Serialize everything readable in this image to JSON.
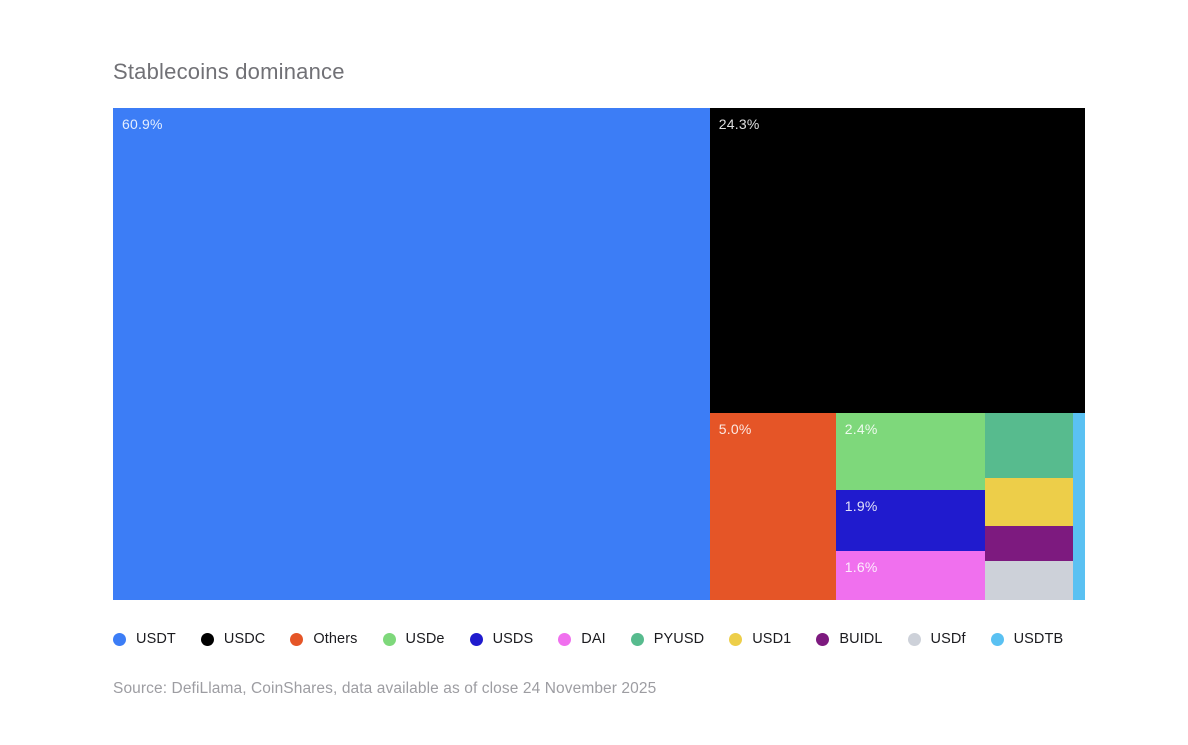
{
  "page": {
    "title": "Stablecoins dominance",
    "source": "Source: DefiLlama, CoinShares, data available as of close 24 November 2025"
  },
  "colors": {
    "background": "#ffffff",
    "title_text": "#717176",
    "source_text": "#9d9da2",
    "tile_label_text": "rgba(255,255,255,0.87)",
    "legend_text": "#1b1b1f"
  },
  "chart_data": {
    "type": "treemap",
    "title": "Stablecoins dominance",
    "unit": "%",
    "legend_position": "bottom",
    "items": [
      {
        "name": "USDT",
        "value": 60.9,
        "label": "60.9%",
        "estimated": false,
        "color": "#3C7DF6",
        "rect": {
          "x": 0,
          "y": 0,
          "w": 61.4,
          "h": 100
        }
      },
      {
        "name": "USDC",
        "value": 24.3,
        "label": "24.3%",
        "estimated": false,
        "color": "#000000",
        "rect": {
          "x": 61.4,
          "y": 0,
          "w": 38.6,
          "h": 62
        }
      },
      {
        "name": "Others",
        "value": 5.0,
        "label": "5.0%",
        "estimated": false,
        "color": "#E55527",
        "rect": {
          "x": 61.4,
          "y": 62,
          "w": 12.96,
          "h": 38
        }
      },
      {
        "name": "USDe",
        "value": 2.4,
        "label": "2.4%",
        "estimated": false,
        "color": "#7ED87B",
        "rect": {
          "x": 74.36,
          "y": 62,
          "w": 15.33,
          "h": 15.65
        }
      },
      {
        "name": "USDS",
        "value": 1.9,
        "label": "1.9%",
        "estimated": false,
        "color": "#201BCE",
        "rect": {
          "x": 74.36,
          "y": 77.65,
          "w": 15.33,
          "h": 12.4
        }
      },
      {
        "name": "DAI",
        "value": 1.6,
        "label": "1.6%",
        "estimated": false,
        "color": "#F070EE",
        "rect": {
          "x": 74.36,
          "y": 90.05,
          "w": 15.33,
          "h": 9.95
        }
      },
      {
        "name": "PYUSD",
        "value": 1.2,
        "label": "",
        "estimated": true,
        "color": "#57BB8E",
        "rect": {
          "x": 89.69,
          "y": 62,
          "w": 9.05,
          "h": 13.2
        }
      },
      {
        "name": "USD1",
        "value": 0.9,
        "label": "",
        "estimated": true,
        "color": "#EDCE49",
        "rect": {
          "x": 89.69,
          "y": 75.2,
          "w": 9.05,
          "h": 9.76
        }
      },
      {
        "name": "BUIDL",
        "value": 0.7,
        "label": "",
        "estimated": true,
        "color": "#7D1A7F",
        "rect": {
          "x": 89.69,
          "y": 84.96,
          "w": 9.05,
          "h": 7.1
        }
      },
      {
        "name": "USDf",
        "value": 0.7,
        "label": "",
        "estimated": true,
        "color": "#CDD1D9",
        "rect": {
          "x": 89.69,
          "y": 92.06,
          "w": 9.05,
          "h": 7.94
        }
      },
      {
        "name": "USDTB",
        "value": 0.3,
        "label": "",
        "estimated": true,
        "color": "#5AC1F2",
        "rect": {
          "x": 98.74,
          "y": 62,
          "w": 1.26,
          "h": 38
        }
      }
    ]
  }
}
